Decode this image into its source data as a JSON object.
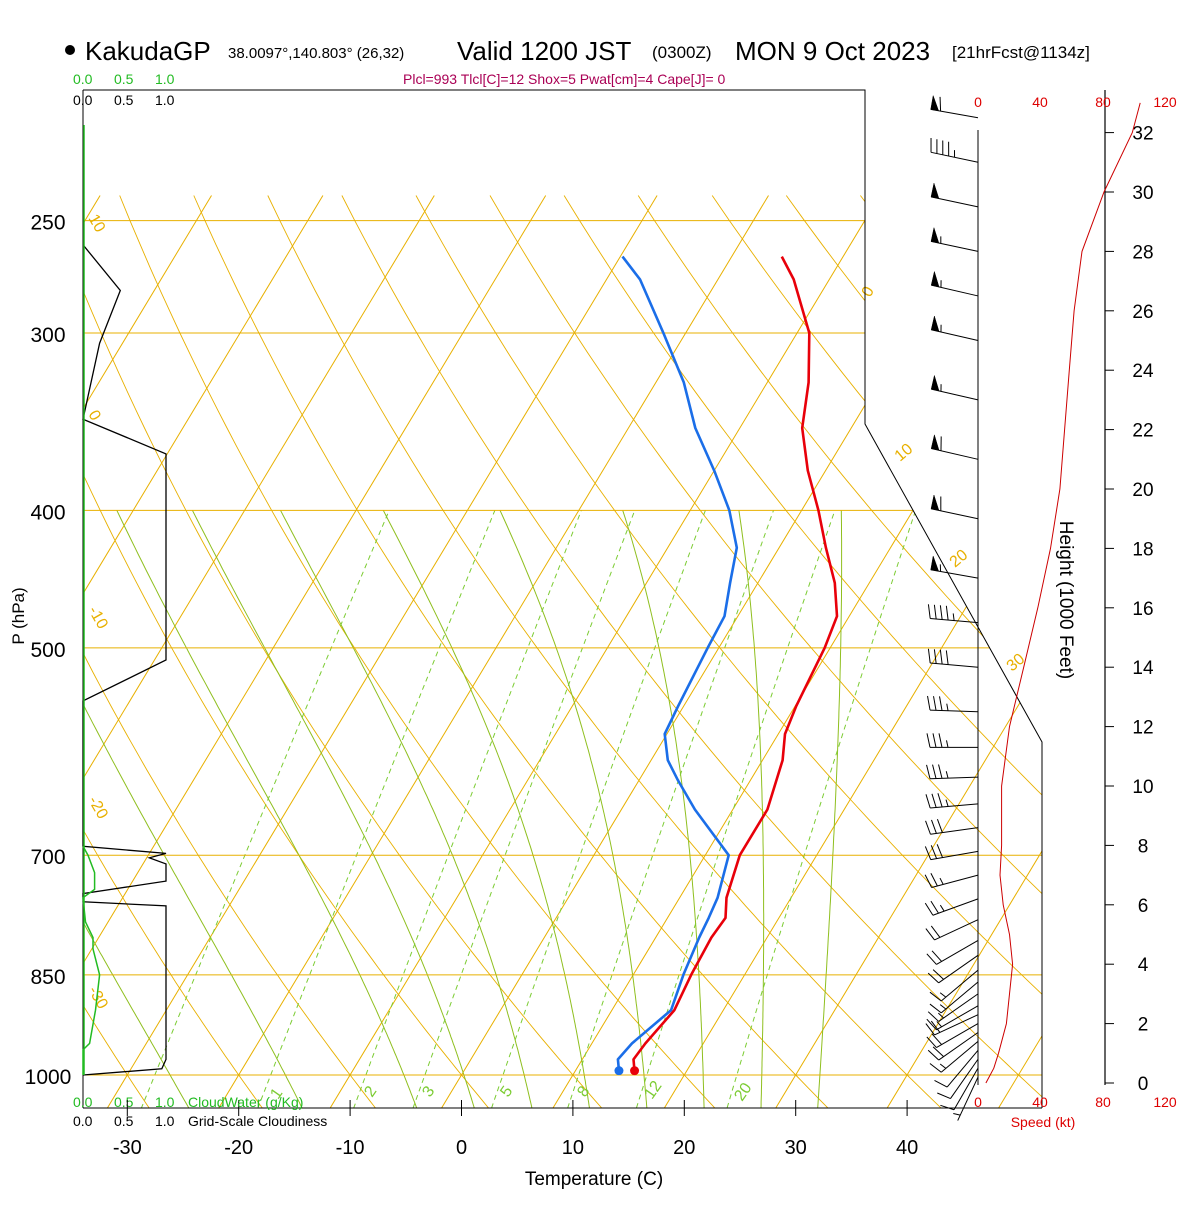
{
  "header": {
    "station": "KakudaGP",
    "coords": "38.0097°,140.803° (26,32)",
    "valid_label": "Valid 1200 JST",
    "utc": "(0300Z)",
    "date": "MON 9 Oct 2023",
    "forecast": "[21hrFcst@1134z]",
    "indices": "Plcl=993 Tlcl[C]=12 Shox=5 Pwat[cm]=4 Cape[J]= 0"
  },
  "bottom_labels": {
    "cloudwater": "CloudWater (g/Kg)",
    "cloudiness": "Grid-Scale Cloudiness"
  },
  "cloud_scale_ticks": [
    "0.0",
    "0.5",
    "1.0"
  ],
  "speed_axis": {
    "ticks": [
      "0",
      "40",
      "80",
      "120"
    ],
    "label": "Speed (kt)"
  },
  "colors": {
    "isotherm": "#e8b000",
    "dry_adiabat": "#e8b000",
    "moist_adiabat": "#8fbf1f",
    "mixing_ratio": "#7ccc33",
    "temperature": "#e8000a",
    "dewpoint": "#1b6ee8",
    "cloudwater": "#22bb22",
    "speed_axis": "#dd0000",
    "header_indices": "#aa0055"
  },
  "chart_data": {
    "type": "line",
    "title": "KakudaGP",
    "xlabel": "Temperature (C)",
    "ylabel": "P (hPa)",
    "y2label": "Height (1000 Feet)",
    "x_ticks": [
      -30,
      -20,
      -10,
      0,
      10,
      20,
      30,
      40
    ],
    "pressure_ticks": [
      250,
      300,
      400,
      500,
      700,
      850,
      1000
    ],
    "height_ticks": [
      0,
      2,
      4,
      6,
      8,
      10,
      12,
      14,
      16,
      18,
      20,
      22,
      24,
      26,
      28,
      30,
      32
    ],
    "isotherm_labels": [
      "10",
      "0",
      "-10",
      "-20",
      "-30",
      "0",
      "10",
      "20",
      "30"
    ],
    "mixing_ratio_labels": [
      "1",
      "2",
      "3",
      "5",
      "8",
      "12",
      "20"
    ],
    "series": [
      {
        "name": "Temperature",
        "points": [
          [
            993,
            15.3
          ],
          [
            975,
            14.6
          ],
          [
            950,
            14.8
          ],
          [
            900,
            15.6
          ],
          [
            850,
            15.2
          ],
          [
            800,
            15.0
          ],
          [
            775,
            15.2
          ],
          [
            750,
            14.2
          ],
          [
            700,
            13.1
          ],
          [
            650,
            13.1
          ],
          [
            600,
            11.8
          ],
          [
            575,
            10.6
          ],
          [
            550,
            10.1
          ],
          [
            500,
            9.5
          ],
          [
            475,
            8.9
          ],
          [
            450,
            6.9
          ],
          [
            425,
            4.2
          ],
          [
            400,
            1.5
          ],
          [
            375,
            -1.6
          ],
          [
            350,
            -4.4
          ],
          [
            325,
            -6.3
          ],
          [
            300,
            -8.9
          ],
          [
            275,
            -13.2
          ],
          [
            265,
            -15.5
          ]
        ]
      },
      {
        "name": "Dewpoint",
        "points": [
          [
            993,
            13.9
          ],
          [
            975,
            13.2
          ],
          [
            950,
            13.6
          ],
          [
            900,
            15.3
          ],
          [
            850,
            14.5
          ],
          [
            800,
            13.9
          ],
          [
            775,
            13.7
          ],
          [
            750,
            13.4
          ],
          [
            700,
            12.1
          ],
          [
            650,
            6.6
          ],
          [
            620,
            3.5
          ],
          [
            600,
            1.5
          ],
          [
            575,
            -0.2
          ],
          [
            550,
            -0.5
          ],
          [
            500,
            -1.0
          ],
          [
            475,
            -1.2
          ],
          [
            450,
            -2.5
          ],
          [
            425,
            -3.8
          ],
          [
            400,
            -6.5
          ],
          [
            375,
            -10.0
          ],
          [
            350,
            -14.0
          ],
          [
            325,
            -17.5
          ],
          [
            300,
            -22.0
          ],
          [
            275,
            -27.0
          ],
          [
            265,
            -29.8
          ]
        ]
      }
    ],
    "cloudwater_profile": [
      [
        1000,
        0.0
      ],
      [
        960,
        0.0
      ],
      [
        950,
        0.08
      ],
      [
        900,
        0.15
      ],
      [
        850,
        0.2
      ],
      [
        815,
        0.12
      ],
      [
        800,
        0.12
      ],
      [
        780,
        0.03
      ],
      [
        750,
        0.0
      ],
      [
        740,
        0.14
      ],
      [
        720,
        0.14
      ],
      [
        700,
        0.06
      ],
      [
        690,
        0.0
      ]
    ],
    "cloudiness_profile": [
      [
        1000,
        0.0
      ],
      [
        990,
        0.95
      ],
      [
        975,
        1.0
      ],
      [
        940,
        1.0
      ],
      [
        900,
        1.0
      ],
      [
        760,
        1.0
      ],
      [
        755,
        0.0
      ],
      [
        745,
        0.0
      ],
      [
        730,
        1.0
      ],
      [
        710,
        1.0
      ],
      [
        703,
        0.8
      ],
      [
        698,
        1.0
      ],
      [
        690,
        0.0
      ],
      [
        545,
        0.0
      ],
      [
        510,
        1.0
      ],
      [
        365,
        1.0
      ],
      [
        345,
        0.0
      ],
      [
        305,
        0.2
      ],
      [
        280,
        0.45
      ],
      [
        260,
        0.0
      ]
    ],
    "wind_profile": [
      {
        "h": 0.2,
        "dir": 205,
        "spd": 5
      },
      {
        "h": 0.5,
        "dir": 210,
        "spd": 8
      },
      {
        "h": 0.8,
        "dir": 215,
        "spd": 10
      },
      {
        "h": 1.1,
        "dir": 220,
        "spd": 12
      },
      {
        "h": 1.4,
        "dir": 230,
        "spd": 15
      },
      {
        "h": 1.7,
        "dir": 235,
        "spd": 18
      },
      {
        "h": 2.0,
        "dir": 240,
        "spd": 22
      },
      {
        "h": 2.3,
        "dir": 245,
        "spd": 20
      },
      {
        "h": 2.6,
        "dir": 240,
        "spd": 17
      },
      {
        "h": 3.0,
        "dir": 235,
        "spd": 15
      },
      {
        "h": 3.4,
        "dir": 230,
        "spd": 15
      },
      {
        "h": 3.8,
        "dir": 230,
        "spd": 17
      },
      {
        "h": 4.3,
        "dir": 235,
        "spd": 18
      },
      {
        "h": 4.8,
        "dir": 240,
        "spd": 20
      },
      {
        "h": 5.5,
        "dir": 245,
        "spd": 22
      },
      {
        "h": 6.2,
        "dir": 250,
        "spd": 25
      },
      {
        "h": 7.0,
        "dir": 255,
        "spd": 27
      },
      {
        "h": 7.8,
        "dir": 260,
        "spd": 30
      },
      {
        "h": 8.6,
        "dir": 262,
        "spd": 32
      },
      {
        "h": 9.4,
        "dir": 265,
        "spd": 35
      },
      {
        "h": 10.3,
        "dir": 268,
        "spd": 35
      },
      {
        "h": 11.3,
        "dir": 270,
        "spd": 35
      },
      {
        "h": 12.5,
        "dir": 272,
        "spd": 37
      },
      {
        "h": 14.0,
        "dir": 275,
        "spd": 40
      },
      {
        "h": 15.5,
        "dir": 275,
        "spd": 45
      },
      {
        "h": 17.0,
        "dir": 280,
        "spd": 55
      },
      {
        "h": 19.0,
        "dir": 282,
        "spd": 60
      },
      {
        "h": 21.0,
        "dir": 283,
        "spd": 60
      },
      {
        "h": 23.0,
        "dir": 283,
        "spd": 55
      },
      {
        "h": 25.0,
        "dir": 283,
        "spd": 55
      },
      {
        "h": 26.5,
        "dir": 283,
        "spd": 55
      },
      {
        "h": 28.0,
        "dir": 282,
        "spd": 55
      },
      {
        "h": 29.5,
        "dir": 282,
        "spd": 50
      },
      {
        "h": 31.0,
        "dir": 282,
        "spd": 45
      },
      {
        "h": 32.5,
        "dir": 280,
        "spd": 60
      }
    ],
    "speed_profile": [
      [
        0,
        5
      ],
      [
        0.5,
        10
      ],
      [
        1.0,
        13
      ],
      [
        2.0,
        18
      ],
      [
        3.0,
        20
      ],
      [
        4.0,
        22
      ],
      [
        5.0,
        20
      ],
      [
        6.0,
        16
      ],
      [
        7.0,
        14
      ],
      [
        8.0,
        15
      ],
      [
        10.0,
        15
      ],
      [
        12.0,
        20
      ],
      [
        14.0,
        29
      ],
      [
        16.0,
        38
      ],
      [
        18.0,
        46
      ],
      [
        20.0,
        52
      ],
      [
        22.0,
        55
      ],
      [
        24.0,
        58
      ],
      [
        26.0,
        61
      ],
      [
        28.0,
        66
      ],
      [
        30.0,
        80
      ],
      [
        32.0,
        98
      ],
      [
        33.0,
        103
      ]
    ]
  }
}
